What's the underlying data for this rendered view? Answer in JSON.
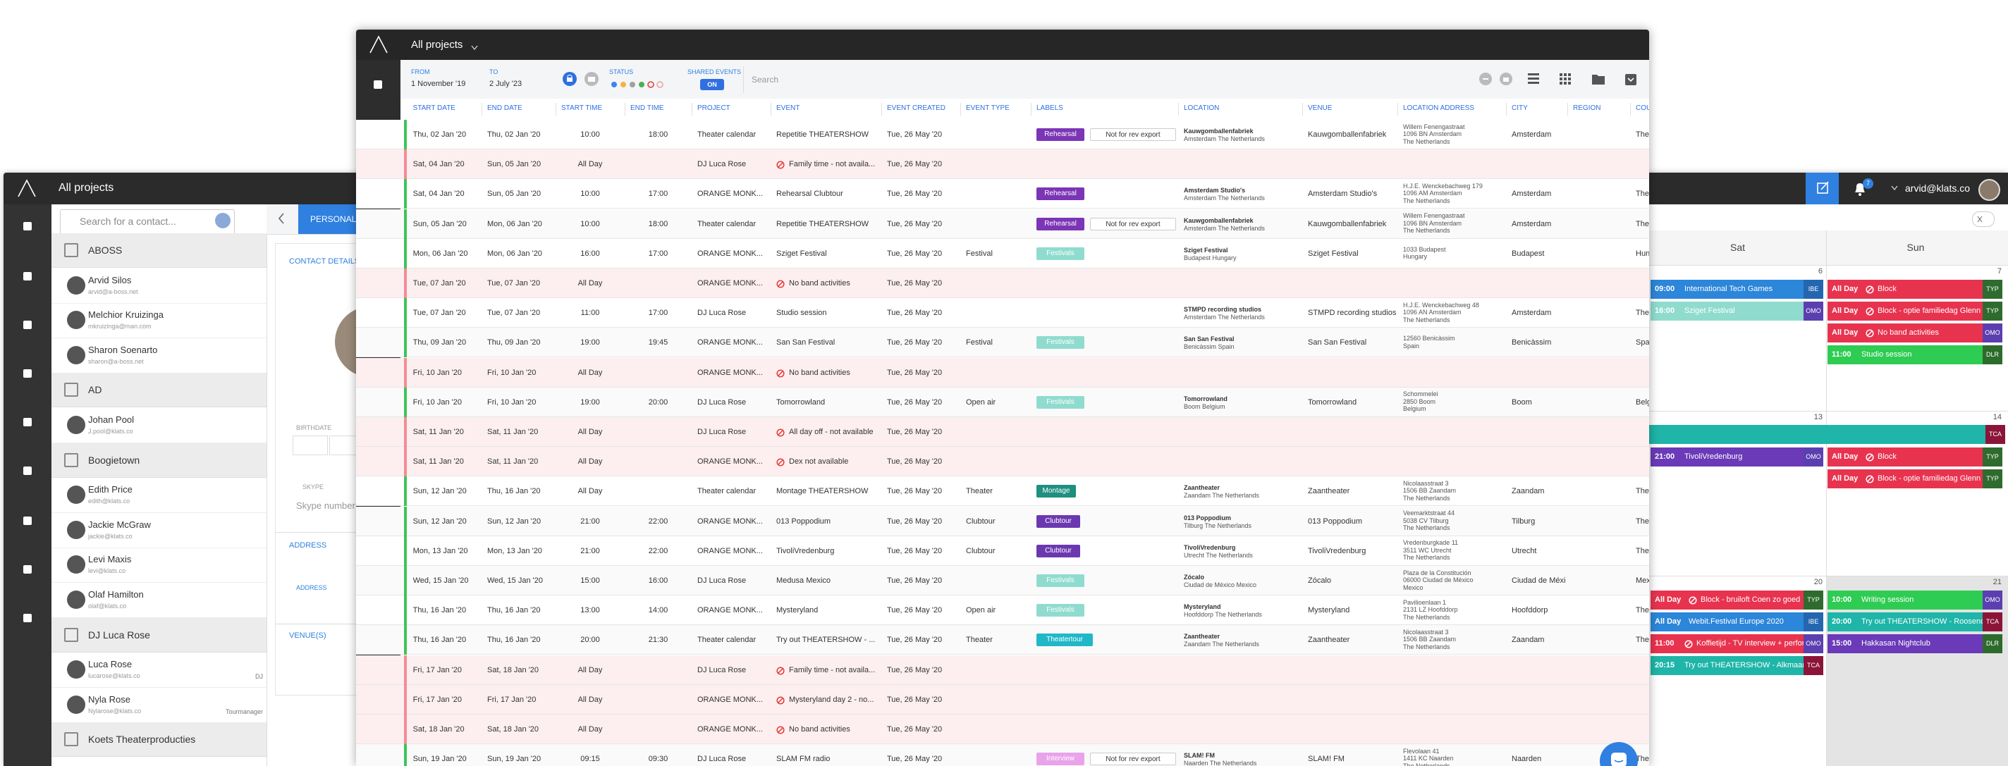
{
  "contacts_window": {
    "project_switch": "All projects",
    "search_placeholder": "Search for a contact...",
    "groups": [
      {
        "name": "ABOSS",
        "contacts": [
          {
            "name": "Arvid Silos",
            "email": "arvid@a-boss.net"
          },
          {
            "name": "Melchior Kruizinga",
            "email": "mkruizinga@man.com"
          },
          {
            "name": "Sharon Soenarto",
            "email": "sharon@a-boss.net"
          }
        ]
      },
      {
        "name": "AD",
        "contacts": [
          {
            "name": "Johan Pool",
            "email": "J.pool@klats.co"
          }
        ]
      },
      {
        "name": "Boogietown",
        "contacts": [
          {
            "name": "Edith Price",
            "email": "edith@klats.co"
          },
          {
            "name": "Jackie McGraw",
            "email": "jackie@klats.co"
          },
          {
            "name": "Levi Maxis",
            "email": "levi@klats.co"
          },
          {
            "name": "Olaf Hamilton",
            "email": "olaf@klats.co"
          }
        ]
      },
      {
        "name": "DJ Luca Rose",
        "contacts": [
          {
            "name": "Luca Rose",
            "email": "lucarose@klats.co",
            "role": "DJ"
          },
          {
            "name": "Nyla Rose",
            "email": "Nylarose@klats.co",
            "role": "Tourmanager"
          }
        ]
      },
      {
        "name": "Koets Theaterproducties",
        "contacts": []
      }
    ],
    "detail": {
      "tab": "PERSONAL",
      "section": "CONTACT DETAILS",
      "birthdate": "BIRTHDATE",
      "skype_label": "SKYPE",
      "skype_placeholder": "Skype number",
      "address_section": "ADDRESS",
      "address_label": "ADDRESS",
      "venues_section": "VENUE(S)"
    }
  },
  "calendar_window": {
    "user": "arvid@klats.co",
    "notification_count": 7,
    "days": [
      "Sat",
      "Sun"
    ],
    "weeks": [
      {
        "dates": [
          6,
          7
        ],
        "span": null,
        "days": [
          [
            {
              "time": "09:00",
              "title": "International Tech Games",
              "badge": "IBE",
              "color": "#2c86d9",
              "badge_color": "#2466b0",
              "blocked": false
            },
            {
              "time": "16:00",
              "title": "Sziget Festival",
              "badge": "OMO",
              "color": "#8fdccf",
              "badge_color": "#5b3fb0",
              "blocked": false
            }
          ],
          [
            {
              "time": "All Day",
              "title": "Block",
              "badge": "TYP",
              "color": "#e8334f",
              "badge_color": "#2f6b2f",
              "blocked": true
            },
            {
              "time": "All Day",
              "title": "Block - optie familiedag Glenn",
              "badge": "TYP",
              "color": "#e8334f",
              "badge_color": "#2f6b2f",
              "blocked": true
            },
            {
              "time": "All Day",
              "title": "No band activities",
              "badge": "OMO",
              "color": "#e8334f",
              "badge_color": "#5b3fb0",
              "blocked": true
            },
            {
              "time": "11:00",
              "title": "Studio session",
              "badge": "DLR",
              "color": "#2ecc52",
              "badge_color": "#2d6b2d",
              "blocked": false
            }
          ]
        ]
      },
      {
        "dates": [
          13,
          14
        ],
        "span": {
          "badge": "TCA",
          "color": "#1fb5a8",
          "badge_color": "#8b1538"
        },
        "days": [
          [
            {
              "time": "21:00",
              "title": "TivoliVredenburg",
              "badge": "OMO",
              "color": "#6a3ab8",
              "badge_color": "#5b3fb0",
              "blocked": false
            }
          ],
          [
            {
              "time": "All Day",
              "title": "Block",
              "badge": "TYP",
              "color": "#e8334f",
              "badge_color": "#2f6b2f",
              "blocked": true
            },
            {
              "time": "All Day",
              "title": "Block - optie familiedag Glenn",
              "badge": "TYP",
              "color": "#e8334f",
              "badge_color": "#2f6b2f",
              "blocked": true
            }
          ]
        ]
      },
      {
        "dates": [
          20,
          21
        ],
        "span": null,
        "days": [
          [
            {
              "time": "All Day",
              "title": "Block - bruiloft Coen zo goed",
              "badge": "TYP",
              "color": "#e8334f",
              "badge_color": "#2f6b2f",
              "blocked": true
            },
            {
              "time": "All Day",
              "title": "Webit.Festival Europe 2020",
              "badge": "IBE",
              "color": "#2c86d9",
              "badge_color": "#2466b0",
              "blocked": false
            },
            {
              "time": "11:00",
              "title": "Koffietijd - TV interview + perform",
              "badge": "OMO",
              "color": "#e8334f",
              "badge_color": "#5b3fb0",
              "blocked": true
            },
            {
              "time": "20:15",
              "title": "Try out THEATERSHOW - Alkmaar",
              "badge": "TCA",
              "color": "#1fb5a8",
              "badge_color": "#8b1538",
              "blocked": false
            }
          ],
          [
            {
              "time": "10:00",
              "title": "Writing session",
              "badge": "OMO",
              "color": "#2ecc52",
              "badge_color": "#5b3fb0",
              "blocked": false
            },
            {
              "time": "20:00",
              "title": "Try out THEATERSHOW - Roosendaal",
              "badge": "TCA",
              "color": "#1fb5a8",
              "badge_color": "#8b1538",
              "blocked": false
            },
            {
              "time": "15:00",
              "title": "Hakkasan Nightclub",
              "badge": "DLR",
              "color": "#6a3ab8",
              "badge_color": "#2d6b2d",
              "blocked": false
            }
          ]
        ]
      }
    ]
  },
  "events_window": {
    "project_switch": "All projects",
    "filters": {
      "from_label": "FROM",
      "from": "1 November '19",
      "to_label": "TO",
      "to": "2 July '23",
      "status_label": "STATUS",
      "shared_label": "SHARED EVENTS",
      "shared_value": "ON",
      "search_placeholder": "Search"
    },
    "columns": [
      "START DATE",
      "END DATE",
      "START TIME",
      "END TIME",
      "PROJECT",
      "EVENT",
      "EVENT CREATED",
      "EVENT TYPE",
      "LABELS",
      "LOCATION",
      "VENUE",
      "LOCATION ADDRESS",
      "CITY",
      "REGION",
      "COUNTRY"
    ],
    "rows": [
      {
        "start": "Thu, 02 Jan '20",
        "end": "Thu, 02 Jan '20",
        "start_time": "10:00",
        "end_time": "18:00",
        "project": "Theater calendar",
        "event": "Repetitie THEATERSHOW",
        "created": "Tue, 26 May '20",
        "unavailable": false,
        "labels": [
          {
            "text": "Rehearsal",
            "color": "#7b35b5"
          },
          {
            "text": "Not for rev export",
            "color": "#ffffff"
          }
        ],
        "location": "Kauwgomballenfabriek",
        "location_sub": "Amsterdam The Netherlands",
        "venue": "Kauwgomballenfabriek",
        "address": [
          "Willem Fenengastraat",
          "1096 BN Amsterdam",
          "The Netherlands"
        ],
        "city": "Amsterdam",
        "country": "The Netherlands"
      },
      {
        "start": "Sat, 04 Jan '20",
        "end": "Sun, 05 Jan '20",
        "start_time": "All Day",
        "project": "DJ Luca Rose",
        "event": "Family time - not availa...",
        "created": "Tue, 26 May '20",
        "unavailable": true
      },
      {
        "start": "Sat, 04 Jan '20",
        "end": "Sun, 05 Jan '20",
        "start_time": "10:00",
        "end_time": "17:00",
        "project": "ORANGE MONK...",
        "event": "Rehearsal Clubtour",
        "created": "Tue, 26 May '20",
        "unavailable": false,
        "labels": [
          {
            "text": "Rehearsal",
            "color": "#7b35b5"
          }
        ],
        "location": "Amsterdam Studio's",
        "location_sub": "Amsterdam The Netherlands",
        "venue": "Amsterdam Studio's",
        "address": [
          "H.J.E. Wenckebachweg 179",
          "1096 AM Amsterdam",
          "The Netherlands"
        ],
        "city": "Amsterdam",
        "country": "The Netherlands"
      },
      {
        "start": "Sun, 05 Jan '20",
        "end": "Mon, 06 Jan '20",
        "start_time": "10:00",
        "end_time": "18:00",
        "project": "Theater calendar",
        "event": "Repetitie THEATERSHOW",
        "created": "Tue, 26 May '20",
        "unavailable": false,
        "labels": [
          {
            "text": "Rehearsal",
            "color": "#7b35b5"
          },
          {
            "text": "Not for rev export",
            "color": "#ffffff"
          }
        ],
        "location": "Kauwgomballenfabriek",
        "location_sub": "Amsterdam The Netherlands",
        "venue": "Kauwgomballenfabriek",
        "address": [
          "Willem Fenengastraat",
          "1096 BN Amsterdam",
          "The Netherlands"
        ],
        "city": "Amsterdam",
        "country": "The Netherlands"
      },
      {
        "start": "Mon, 06 Jan '20",
        "end": "Mon, 06 Jan '20",
        "start_time": "16:00",
        "end_time": "17:00",
        "project": "ORANGE MONK...",
        "event": "Sziget Festival",
        "created": "Tue, 26 May '20",
        "type": "Festival",
        "unavailable": false,
        "labels": [
          {
            "text": "Festivals",
            "color": "#8fdccf"
          }
        ],
        "location": "Sziget Festival",
        "location_sub": "Budapest Hungary",
        "venue": "Sziget Festival",
        "address": [
          "1033 Budapest",
          "Hungary"
        ],
        "city": "Budapest",
        "country": "Hungary"
      },
      {
        "start": "Tue, 07 Jan '20",
        "end": "Tue, 07 Jan '20",
        "start_time": "All Day",
        "project": "ORANGE MONK...",
        "event": "No band activities",
        "created": "Tue, 26 May '20",
        "unavailable": true
      },
      {
        "start": "Tue, 07 Jan '20",
        "end": "Tue, 07 Jan '20",
        "start_time": "11:00",
        "end_time": "17:00",
        "project": "DJ Luca Rose",
        "event": "Studio session",
        "created": "Tue, 26 May '20",
        "unavailable": false,
        "location": "STMPD recording studios",
        "location_sub": "Amsterdam The Netherlands",
        "venue": "STMPD recording studios",
        "address": [
          "H.J.E. Wenckebachweg 48",
          "1096 AN Amsterdam",
          "The Netherlands"
        ],
        "city": "Amsterdam",
        "country": "The Netherlands"
      },
      {
        "start": "Thu, 09 Jan '20",
        "end": "Thu, 09 Jan '20",
        "start_time": "19:00",
        "end_time": "19:45",
        "project": "ORANGE MONK...",
        "event": "San San Festival",
        "created": "Tue, 26 May '20",
        "type": "Festival",
        "unavailable": false,
        "labels": [
          {
            "text": "Festivals",
            "color": "#8fdccf"
          }
        ],
        "location": "San San Festival",
        "location_sub": "Benicàssim Spain",
        "venue": "San San Festival",
        "address": [
          "12560 Benicàssim",
          "Spain"
        ],
        "city": "Benicàssim",
        "country": "Spain"
      },
      {
        "start": "Fri, 10 Jan '20",
        "end": "Fri, 10 Jan '20",
        "start_time": "All Day",
        "project": "ORANGE MONK...",
        "event": "No band activities",
        "created": "Tue, 26 May '20",
        "unavailable": true
      },
      {
        "start": "Fri, 10 Jan '20",
        "end": "Fri, 10 Jan '20",
        "start_time": "19:00",
        "end_time": "20:00",
        "project": "DJ Luca Rose",
        "event": "Tomorrowland",
        "created": "Tue, 26 May '20",
        "type": "Open air",
        "unavailable": false,
        "labels": [
          {
            "text": "Festivals",
            "color": "#8fdccf"
          }
        ],
        "location": "Tomorrowland",
        "location_sub": "Boom Belgium",
        "venue": "Tomorrowland",
        "address": [
          "Schommelei",
          "2850 Boom",
          "Belgium"
        ],
        "city": "Boom",
        "country": "Belgium"
      },
      {
        "start": "Sat, 11 Jan '20",
        "end": "Sat, 11 Jan '20",
        "start_time": "All Day",
        "project": "DJ Luca Rose",
        "event": "All day off - not available",
        "created": "Tue, 26 May '20",
        "unavailable": true
      },
      {
        "start": "Sat, 11 Jan '20",
        "end": "Sat, 11 Jan '20",
        "start_time": "All Day",
        "project": "ORANGE MONK...",
        "event": "Dex not available",
        "created": "Tue, 26 May '20",
        "unavailable": true
      },
      {
        "start": "Sun, 12 Jan '20",
        "end": "Thu, 16 Jan '20",
        "start_time": "All Day",
        "project": "Theater calendar",
        "event": "Montage THEATERSHOW",
        "created": "Tue, 26 May '20",
        "type": "Theater",
        "unavailable": false,
        "labels": [
          {
            "text": "Montage",
            "color": "#1f8f7f"
          }
        ],
        "location": "Zaantheater",
        "location_sub": "Zaandam The Netherlands",
        "venue": "Zaantheater",
        "address": [
          "Nicolaasstraat 3",
          "1506 BB Zaandam",
          "The Netherlands"
        ],
        "city": "Zaandam",
        "country": "The Netherlands"
      },
      {
        "start": "Sun, 12 Jan '20",
        "end": "Sun, 12 Jan '20",
        "start_time": "21:00",
        "end_time": "22:00",
        "project": "ORANGE MONK...",
        "event": "013 Poppodium",
        "created": "Tue, 26 May '20",
        "type": "Clubtour",
        "unavailable": false,
        "labels": [
          {
            "text": "Clubtour",
            "color": "#6b38b0"
          }
        ],
        "location": "013 Poppodium",
        "location_sub": "Tilburg The Netherlands",
        "venue": "013 Poppodium",
        "address": [
          "Veemarktstraat 44",
          "5038 CV Tilburg",
          "The Netherlands"
        ],
        "city": "Tilburg",
        "country": "The Netherlands"
      },
      {
        "start": "Mon, 13 Jan '20",
        "end": "Mon, 13 Jan '20",
        "start_time": "21:00",
        "end_time": "22:00",
        "project": "ORANGE MONK...",
        "event": "TivoliVredenburg",
        "created": "Tue, 26 May '20",
        "type": "Clubtour",
        "unavailable": false,
        "labels": [
          {
            "text": "Clubtour",
            "color": "#6b38b0"
          }
        ],
        "location": "TivoliVredenburg",
        "location_sub": "Utrecht The Netherlands",
        "venue": "TivoliVredenburg",
        "address": [
          "Vredenburgkade 11",
          "3511 WC Utrecht",
          "The Netherlands"
        ],
        "city": "Utrecht",
        "country": "The Netherlands"
      },
      {
        "start": "Wed, 15 Jan '20",
        "end": "Wed, 15 Jan '20",
        "start_time": "15:00",
        "end_time": "16:00",
        "project": "DJ Luca Rose",
        "event": "Medusa Mexico",
        "created": "Tue, 26 May '20",
        "unavailable": false,
        "labels": [
          {
            "text": "Festivals",
            "color": "#8fdccf"
          }
        ],
        "location": "Zócalo",
        "location_sub": "Ciudad de México Mexico",
        "venue": "Zócalo",
        "address": [
          "Plaza de la Constitución",
          "06000 Ciudad de México",
          "Mexico"
        ],
        "city": "Ciudad de México",
        "country": "Mexico"
      },
      {
        "start": "Thu, 16 Jan '20",
        "end": "Thu, 16 Jan '20",
        "start_time": "13:00",
        "end_time": "14:00",
        "project": "ORANGE MONK...",
        "event": "Mysteryland",
        "created": "Tue, 26 May '20",
        "type": "Open air",
        "unavailable": false,
        "labels": [
          {
            "text": "Festivals",
            "color": "#8fdccf"
          }
        ],
        "location": "Mysteryland",
        "location_sub": "Hoofddorp The Netherlands",
        "venue": "Mysteryland",
        "address": [
          "Pavilioenlaan 1",
          "2131 LZ Hoofddorp",
          "The Netherlands"
        ],
        "city": "Hoofddorp",
        "country": "The Netherlands"
      },
      {
        "start": "Thu, 16 Jan '20",
        "end": "Thu, 16 Jan '20",
        "start_time": "20:00",
        "end_time": "21:30",
        "project": "Theater calendar",
        "event": "Try out THEATERSHOW - ...",
        "created": "Tue, 26 May '20",
        "type": "Theater",
        "unavailable": false,
        "labels": [
          {
            "text": "Theatertour",
            "color": "#20b8c8"
          }
        ],
        "location": "Zaantheater",
        "location_sub": "Zaandam The Netherlands",
        "venue": "Zaantheater",
        "address": [
          "Nicolaasstraat 3",
          "1506 BB Zaandam",
          "The Netherlands"
        ],
        "city": "Zaandam",
        "country": "The Netherlands"
      },
      {
        "start": "Fri, 17 Jan '20",
        "end": "Sat, 18 Jan '20",
        "start_time": "All Day",
        "project": "DJ Luca Rose",
        "event": "Family time - not availa...",
        "created": "Tue, 26 May '20",
        "unavailable": true
      },
      {
        "start": "Fri, 17 Jan '20",
        "end": "Fri, 17 Jan '20",
        "start_time": "All Day",
        "project": "ORANGE MONK...",
        "event": "Mysteryland day 2 - no...",
        "created": "Tue, 26 May '20",
        "unavailable": true
      },
      {
        "start": "Sat, 18 Jan '20",
        "end": "Sat, 18 Jan '20",
        "start_time": "All Day",
        "project": "ORANGE MONK...",
        "event": "No band activities",
        "created": "Tue, 26 May '20",
        "unavailable": true
      },
      {
        "start": "Sun, 19 Jan '20",
        "end": "Sun, 19 Jan '20",
        "start_time": "09:15",
        "end_time": "09:30",
        "project": "DJ Luca Rose",
        "event": "SLAM FM radio",
        "created": "Tue, 26 May '20",
        "unavailable": false,
        "labels": [
          {
            "text": "Interview",
            "color": "#e9a3ea"
          },
          {
            "text": "Not for rev export",
            "color": "#ffffff"
          }
        ],
        "location": "SLAM! FM",
        "location_sub": "Naarden The Netherlands",
        "venue": "SLAM! FM",
        "address": [
          "Flevolaan 41",
          "1411 KC Naarden",
          "The Netherlands"
        ],
        "city": "Naarden",
        "country": "The Netherlands"
      }
    ]
  }
}
